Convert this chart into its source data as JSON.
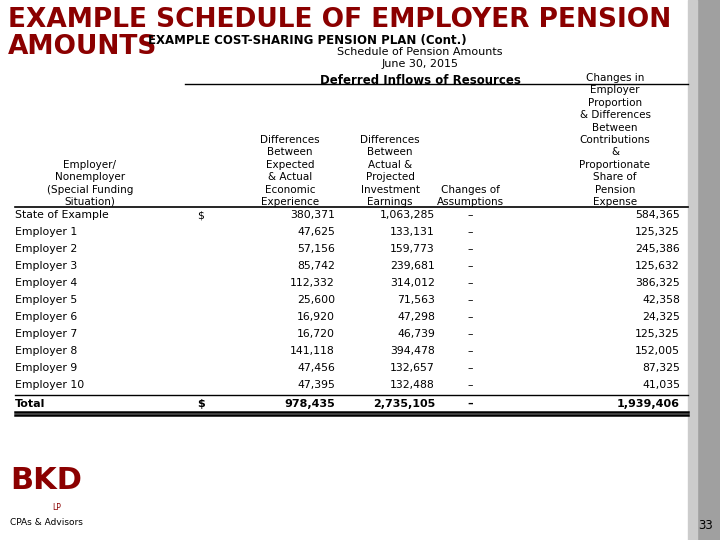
{
  "bg_color": "#ffffff",
  "title_line1": "EXAMPLE SCHEDULE OF EMPLOYER PENSION",
  "title_line2": "AMOUNTS",
  "title_color": "#8B0000",
  "subtitle1": "EXAMPLE COST-SHARING PENSION PLAN (Cont.)",
  "subtitle2": "Schedule of Pension Amounts",
  "subtitle3": "June 30, 2015",
  "section_header": "Deferred Inflows of Resources",
  "col_headers": [
    "Employer/\nNonemployer\n(Special Funding\nSituation)",
    "Differences\nBetween\nExpected\n& Actual\nEconomic\nExperience",
    "Differences\nBetween\nActual &\nProjected\nInvestment\nEarnings",
    "Changes of\nAssumptions",
    "Changes in\nEmployer\nProportion\n& Differences\nBetween\nContributions\n&\nProportionate\nShare of\nPension\nExpense"
  ],
  "rows": [
    [
      "State of Example",
      "$",
      "380,371",
      "1,063,285",
      "–",
      "584,365"
    ],
    [
      "Employer 1",
      "",
      "47,625",
      "133,131",
      "–",
      "125,325"
    ],
    [
      "Employer 2",
      "",
      "57,156",
      "159,773",
      "–",
      "245,386"
    ],
    [
      "Employer 3",
      "",
      "85,742",
      "239,681",
      "–",
      "125,632"
    ],
    [
      "Employer 4",
      "",
      "112,332",
      "314,012",
      "–",
      "386,325"
    ],
    [
      "Employer 5",
      "",
      "25,600",
      "71,563",
      "–",
      "42,358"
    ],
    [
      "Employer 6",
      "",
      "16,920",
      "47,298",
      "–",
      "24,325"
    ],
    [
      "Employer 7",
      "",
      "16,720",
      "46,739",
      "–",
      "125,325"
    ],
    [
      "Employer 8",
      "",
      "141,118",
      "394,478",
      "–",
      "152,005"
    ],
    [
      "Employer 9",
      "",
      "47,456",
      "132,657",
      "–",
      "87,325"
    ],
    [
      "Employer 10",
      "",
      "47,395",
      "132,488",
      "–",
      "41,035"
    ]
  ],
  "total_row": [
    "Total",
    "$",
    "978,435",
    "2,735,105",
    "–",
    "1,939,406"
  ],
  "page_number": "33",
  "gray_strip_color": "#a0a0a0",
  "font_name": "DejaVu Sans"
}
